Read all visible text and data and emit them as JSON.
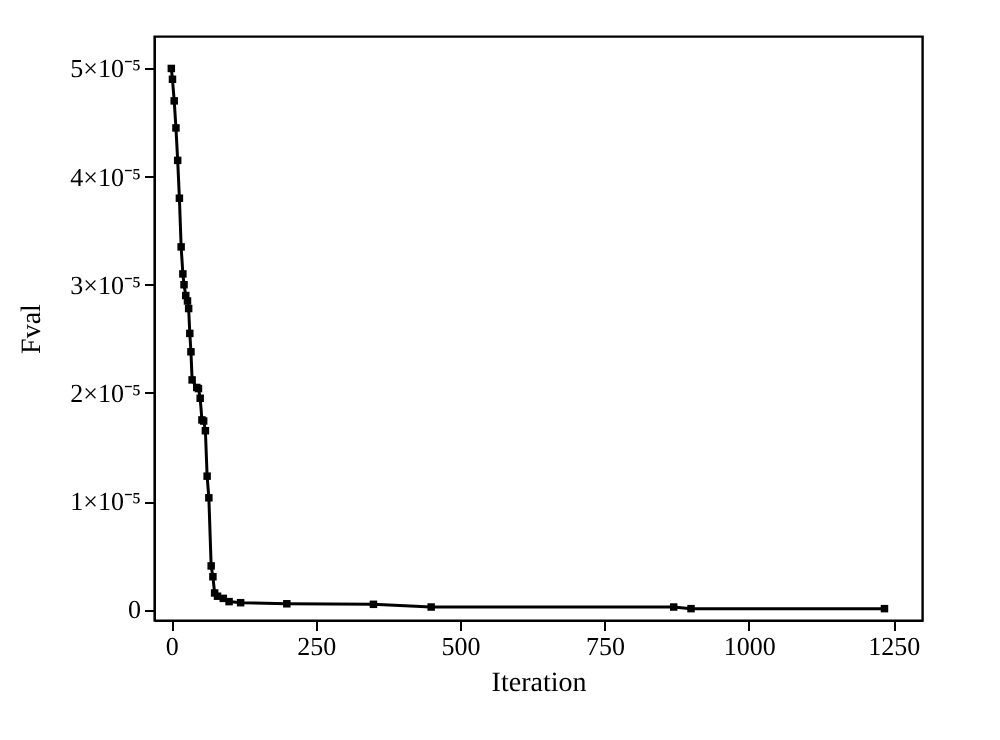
{
  "chart_data": {
    "type": "line",
    "xlabel": "Iteration",
    "ylabel": "Fval",
    "marker": "square",
    "line_style": "solid",
    "grid": false,
    "legend": false,
    "xlim": [
      -30,
      1300
    ],
    "xticks": [
      0,
      250,
      500,
      750,
      1000,
      1250
    ],
    "ylim": [
      -1e-06,
      5.3e-05
    ],
    "yticks": [
      {
        "value": 0,
        "label": "0"
      },
      {
        "value": 1e-05,
        "label": "1×10⁻⁵"
      },
      {
        "value": 2e-05,
        "label": "2×10⁻⁵"
      },
      {
        "value": 3e-05,
        "label": "3×10⁻⁵"
      },
      {
        "value": 4e-05,
        "label": "4×10⁻⁵"
      },
      {
        "value": 5e-05,
        "label": "5×10⁻⁵"
      }
    ],
    "x": [
      0,
      2,
      5,
      8,
      11,
      14,
      17,
      20,
      22,
      25,
      28,
      30,
      32,
      34,
      36,
      44,
      47,
      50,
      53,
      56,
      59,
      62,
      65,
      69,
      72,
      75,
      80,
      90,
      100,
      120,
      200,
      350,
      450,
      870,
      900,
      1235
    ],
    "series": [
      {
        "color": "#000000",
        "values": [
          5e-05,
          4.9e-05,
          4.7e-05,
          4.45e-05,
          4.15e-05,
          3.8e-05,
          3.35e-05,
          3.1e-05,
          3e-05,
          2.9e-05,
          2.85e-05,
          2.78e-05,
          2.55e-05,
          2.38e-05,
          2.12e-05,
          2.05e-05,
          2.04e-05,
          1.95e-05,
          1.75e-05,
          1.74e-05,
          1.65e-05,
          1.23e-05,
          1.03e-05,
          4e-06,
          3e-06,
          1.5e-06,
          1.2e-06,
          1e-06,
          7e-07,
          6e-07,
          5e-07,
          4.5e-07,
          2e-07,
          2e-07,
          5e-08,
          5e-08
        ]
      }
    ]
  }
}
